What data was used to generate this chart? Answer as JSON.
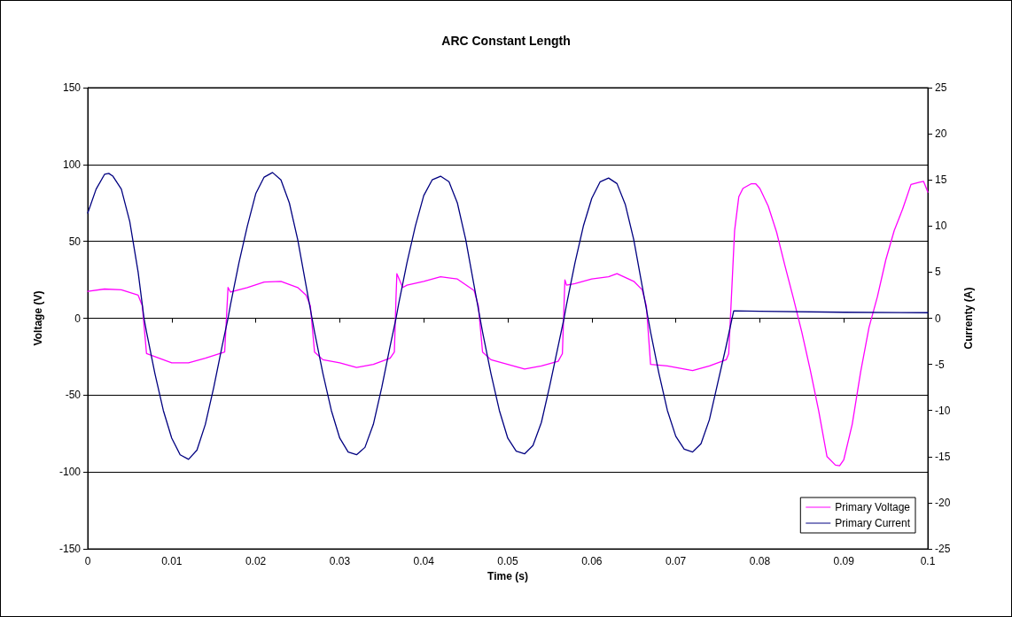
{
  "chart_data": {
    "type": "line",
    "title": "ARC Constant Length",
    "xlabel": "Time (s)",
    "ylabel": "Voltage (V)",
    "y2label": "Currenty (A)",
    "xlim": [
      0,
      0.1
    ],
    "xticks": [
      0,
      0.01,
      0.02,
      0.03,
      0.04,
      0.05,
      0.06,
      0.07,
      0.08,
      0.09,
      0.1
    ],
    "ylim": [
      -150,
      150
    ],
    "yticks": [
      -150,
      -100,
      -50,
      0,
      50,
      100,
      150
    ],
    "y2lim": [
      -25,
      25
    ],
    "y2ticks": [
      -25,
      -20,
      -15,
      -10,
      -5,
      0,
      5,
      10,
      15,
      20,
      25
    ],
    "grid": "y",
    "legend": "bottom right",
    "marker": "none",
    "line_style": "solid",
    "series": [
      {
        "name": "Primary Voltage",
        "color": "#ff00ff",
        "x": [
          0,
          0.002,
          0.004,
          0.006,
          0.0065,
          0.007,
          0.0075,
          0.009,
          0.01,
          0.012,
          0.014,
          0.0163,
          0.0167,
          0.017,
          0.019,
          0.021,
          0.023,
          0.025,
          0.026,
          0.0265,
          0.027,
          0.028,
          0.03,
          0.032,
          0.034,
          0.036,
          0.0365,
          0.0367,
          0.0368,
          0.0375,
          0.038,
          0.04,
          0.042,
          0.044,
          0.046,
          0.0465,
          0.047,
          0.048,
          0.05,
          0.052,
          0.054,
          0.056,
          0.0565,
          0.0568,
          0.057,
          0.058,
          0.06,
          0.062,
          0.063,
          0.065,
          0.066,
          0.0665,
          0.067,
          0.069,
          0.07,
          0.072,
          0.074,
          0.076,
          0.0763,
          0.077,
          0.0775,
          0.078,
          0.079,
          0.0795,
          0.08,
          0.081,
          0.082,
          0.083,
          0.084,
          0.085,
          0.086,
          0.087,
          0.088,
          0.089,
          0.0895,
          0.09,
          0.091,
          0.092,
          0.093,
          0.094,
          0.095,
          0.096,
          0.097,
          0.098,
          0.099,
          0.0995,
          0.1
        ],
        "values": [
          17.5,
          19,
          18.5,
          15,
          8,
          -23,
          -24,
          -27,
          -29,
          -29,
          -26,
          -22,
          20,
          17,
          20,
          23.5,
          24,
          20,
          15,
          8,
          -22,
          -27,
          -29,
          -32,
          -30,
          -26,
          -22,
          14,
          29,
          20,
          21.5,
          24,
          27,
          25.5,
          18,
          8,
          -22,
          -27,
          -30,
          -33,
          -31,
          -28,
          -23,
          25,
          21.5,
          22.5,
          25.5,
          27,
          29,
          24,
          18.5,
          8,
          -30,
          -31,
          -32,
          -34,
          -31,
          -27,
          -23,
          57,
          79,
          84.5,
          87.5,
          87.5,
          84.5,
          73,
          56,
          34,
          13,
          -9,
          -33.5,
          -60,
          -90,
          -95.5,
          -96,
          -92,
          -69,
          -35,
          -6,
          14,
          38,
          57,
          71,
          87,
          88.5,
          89,
          82
        ]
      },
      {
        "name": "Primary Current",
        "color": "#000080",
        "axis": "y2",
        "x": [
          0,
          0.001,
          0.002,
          0.0025,
          0.003,
          0.004,
          0.005,
          0.006,
          0.0067,
          0.007,
          0.008,
          0.009,
          0.01,
          0.011,
          0.012,
          0.013,
          0.014,
          0.015,
          0.016,
          0.0167,
          0.017,
          0.018,
          0.019,
          0.02,
          0.021,
          0.022,
          0.023,
          0.024,
          0.025,
          0.026,
          0.0267,
          0.027,
          0.028,
          0.029,
          0.03,
          0.031,
          0.032,
          0.033,
          0.034,
          0.035,
          0.036,
          0.0367,
          0.037,
          0.038,
          0.039,
          0.04,
          0.041,
          0.042,
          0.043,
          0.044,
          0.045,
          0.046,
          0.0467,
          0.047,
          0.048,
          0.049,
          0.05,
          0.051,
          0.052,
          0.053,
          0.054,
          0.055,
          0.056,
          0.0567,
          0.057,
          0.058,
          0.059,
          0.06,
          0.061,
          0.062,
          0.063,
          0.064,
          0.065,
          0.066,
          0.0667,
          0.067,
          0.068,
          0.069,
          0.07,
          0.071,
          0.072,
          0.073,
          0.074,
          0.075,
          0.076,
          0.0767,
          0.0769,
          0.08,
          0.09,
          0.1
        ],
        "values": [
          11.4,
          14,
          15.6,
          15.7,
          15.4,
          14,
          10.5,
          5,
          0,
          -1.5,
          -6,
          -10,
          -13,
          -14.8,
          -15.3,
          -14.3,
          -11.5,
          -7.5,
          -3,
          0,
          1.5,
          6,
          10,
          13.5,
          15.3,
          15.8,
          15,
          12.5,
          8.5,
          3.5,
          0,
          -1.5,
          -6,
          -10,
          -13,
          -14.5,
          -14.8,
          -14,
          -11.5,
          -7.5,
          -3,
          0,
          1.5,
          6,
          10,
          13.3,
          15,
          15.4,
          14.8,
          12.5,
          8.5,
          3.5,
          0,
          -1.5,
          -6,
          -10,
          -13,
          -14.4,
          -14.7,
          -13.8,
          -11.3,
          -7.3,
          -3,
          0,
          1.5,
          6,
          10,
          13,
          14.8,
          15.2,
          14.6,
          12.3,
          8.5,
          3.5,
          0,
          -1.5,
          -6,
          -10,
          -12.8,
          -14.2,
          -14.5,
          -13.6,
          -11,
          -7,
          -3,
          0,
          0.8,
          0.75,
          0.65,
          0.6
        ]
      }
    ]
  }
}
